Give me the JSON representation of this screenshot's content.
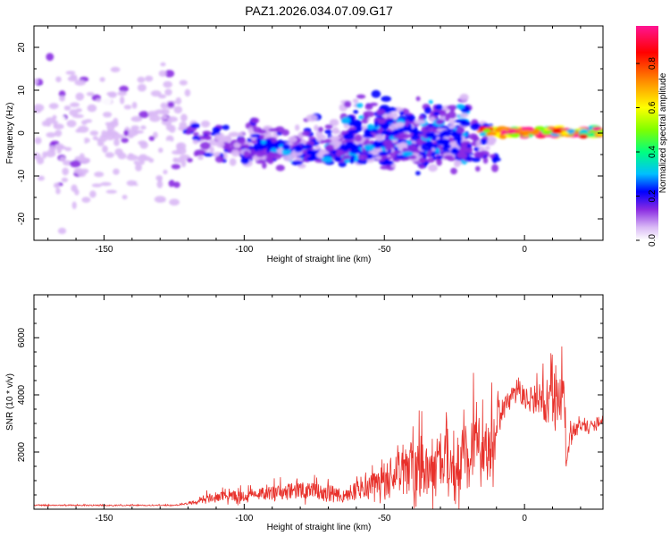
{
  "title": "PAZ1.2026.034.07.09.G17",
  "colors": {
    "snr_line": "#e8312b",
    "axis": "#000000",
    "colorbar": [
      "#ffffff",
      "#d9b8f5",
      "#8a2be2",
      "#0000ff",
      "#00bfff",
      "#00ff7f",
      "#7fff00",
      "#ffff00",
      "#ff8c00",
      "#ff0000",
      "#ff1493"
    ]
  },
  "chart_data": [
    {
      "type": "heatmap",
      "xlabel": "Height of straight line (km)",
      "ylabel": "Frequency (Hz)",
      "xlim": [
        -175,
        28
      ],
      "ylim": [
        -25,
        25
      ],
      "xticks": [
        -150,
        -100,
        -50,
        0
      ],
      "yticks": [
        -20,
        -10,
        0,
        10,
        20
      ],
      "colorbar": {
        "label": "Normalized spectral amplitude",
        "range": [
          0.0,
          0.97
        ],
        "ticks": [
          0.0,
          0.2,
          0.4,
          0.6,
          0.8
        ]
      },
      "features": [
        {
          "name": "diffuse noise",
          "x_range": [
            -175,
            -120
          ],
          "freq_range": [
            -25,
            25
          ],
          "amplitude": 0.08
        },
        {
          "name": "scattered signal",
          "x_range": [
            -120,
            -10
          ],
          "freq_range": [
            -10,
            5
          ],
          "amplitude": 0.2
        },
        {
          "name": "upper branch",
          "x_range": [
            -65,
            -20
          ],
          "freq_range": [
            -5,
            10
          ],
          "amplitude": 0.25
        },
        {
          "name": "lower branch",
          "x_range": [
            -100,
            -20
          ],
          "freq_range": [
            -8,
            -1
          ],
          "amplitude": 0.25
        },
        {
          "name": "main carrier",
          "x_range": [
            -15,
            28
          ],
          "freq_range": [
            -1,
            1.5
          ],
          "amplitude": 0.85
        }
      ]
    },
    {
      "type": "line",
      "xlabel": "Height of straight line (km)",
      "ylabel": "SNR (10 * v/v)",
      "xlim": [
        -175,
        28
      ],
      "ylim": [
        0,
        7500
      ],
      "xticks": [
        -150,
        -100,
        -50,
        0
      ],
      "yticks": [
        2000,
        4000,
        6000
      ],
      "series": [
        {
          "name": "SNR",
          "x": [
            -175,
            -160,
            -140,
            -125,
            -120,
            -115,
            -110,
            -100,
            -90,
            -80,
            -75,
            -70,
            -65,
            -60,
            -55,
            -50,
            -45,
            -40,
            -35,
            -30,
            -25,
            -20,
            -16,
            -14,
            -12,
            -10,
            -8,
            -5,
            -3,
            0,
            3,
            5,
            8,
            10,
            12,
            14,
            15,
            16,
            18,
            20,
            22,
            25,
            28
          ],
          "baseline": [
            130,
            130,
            130,
            130,
            180,
            300,
            350,
            420,
            500,
            550,
            500,
            450,
            400,
            550,
            700,
            900,
            1000,
            1100,
            1150,
            1250,
            1300,
            1500,
            1800,
            1500,
            1600,
            2500,
            3400,
            3800,
            4000,
            3800,
            3600,
            3700,
            3400,
            3600,
            3200,
            2600,
            1500,
            2300,
            2700,
            2900,
            2800,
            2900,
            3100
          ],
          "spread": [
            40,
            40,
            40,
            40,
            100,
            300,
            400,
            500,
            550,
            700,
            700,
            700,
            600,
            700,
            800,
            1300,
            1700,
            2200,
            2300,
            2400,
            2600,
            2600,
            4000,
            1500,
            3000,
            1500,
            1000,
            900,
            1000,
            900,
            800,
            1200,
            2000,
            1800,
            2500,
            3500,
            600,
            800,
            600,
            500,
            400,
            500,
            300
          ]
        }
      ]
    }
  ]
}
